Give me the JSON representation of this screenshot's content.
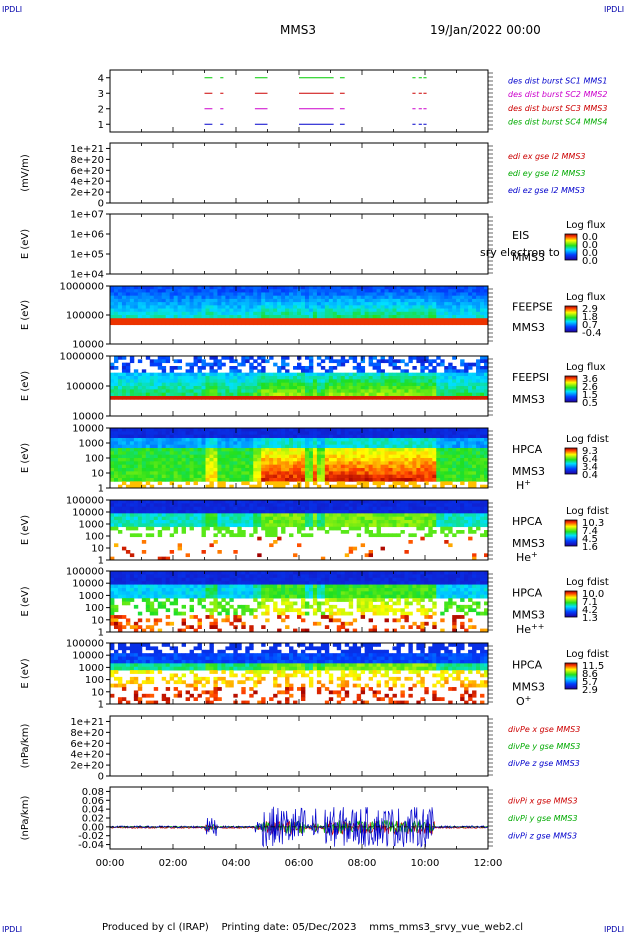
{
  "header": {
    "corner_tl": "IPDLI",
    "corner_tr": "IPDLI",
    "title": "MMS3",
    "datetime": "19/Jan/2022 00:00"
  },
  "footer": {
    "corner_bl": "IPDLI",
    "corner_br": "IPDLI",
    "text": "Produced by cl (IRAP)    Printing date: 05/Dec/2023    mms_mms3_srvy_vue_web2.cl"
  },
  "chart_data": [
    {
      "id": "burst",
      "type": "line",
      "ylim": [
        0.5,
        4.5
      ],
      "y_ticks": [
        "1",
        "2",
        "3",
        "4"
      ],
      "legend": [
        {
          "text": "des dist burst SC1 MMS1",
          "color": "#0000cc"
        },
        {
          "text": "des dist burst SC2 MMS2",
          "color": "#cc00cc"
        },
        {
          "text": "des dist burst SC3 MMS3",
          "color": "#cc0000"
        },
        {
          "text": "des dist burst SC4 MMS4",
          "color": "#00aa00"
        }
      ],
      "series": [
        {
          "level": 4,
          "color": "#00cc00",
          "segments": [
            [
              3.0,
              3.25
            ],
            [
              3.5,
              3.6
            ],
            [
              4.6,
              5.0
            ],
            [
              6.0,
              7.1
            ],
            [
              7.3,
              7.45
            ],
            [
              9.6,
              9.7
            ],
            [
              9.8,
              9.9
            ],
            [
              9.95,
              10.05
            ]
          ]
        },
        {
          "level": 3,
          "color": "#cc0000",
          "segments": [
            [
              3.0,
              3.25
            ],
            [
              3.5,
              3.6
            ],
            [
              4.6,
              5.0
            ],
            [
              6.0,
              7.1
            ],
            [
              7.3,
              7.45
            ],
            [
              9.6,
              9.7
            ],
            [
              9.8,
              9.9
            ],
            [
              9.95,
              10.05
            ]
          ]
        },
        {
          "level": 2,
          "color": "#cc00cc",
          "segments": [
            [
              3.0,
              3.25
            ],
            [
              3.5,
              3.6
            ],
            [
              4.6,
              5.0
            ],
            [
              6.0,
              7.1
            ],
            [
              7.3,
              7.45
            ],
            [
              9.6,
              9.7
            ],
            [
              9.8,
              9.9
            ],
            [
              9.95,
              10.05
            ]
          ]
        },
        {
          "level": 1,
          "color": "#0000cc",
          "segments": [
            [
              3.0,
              3.25
            ],
            [
              3.5,
              3.6
            ],
            [
              4.6,
              5.0
            ],
            [
              6.0,
              7.1
            ],
            [
              7.3,
              7.45
            ],
            [
              9.6,
              9.7
            ],
            [
              9.8,
              9.9
            ],
            [
              9.95,
              10.05
            ]
          ]
        }
      ]
    },
    {
      "id": "edi",
      "type": "line",
      "ylabel": "(mV/m)",
      "ylim": [
        0,
        1.1e+21
      ],
      "y_ticks": [
        "1e+21",
        "8e+20",
        "6e+20",
        "4e+20",
        "2e+20",
        "0"
      ],
      "y_tick_values": [
        1e+21,
        8e+20,
        6e+20,
        4e+20,
        2e+20,
        0
      ],
      "legend": [
        {
          "text": "edi ex gse l2 MMS3",
          "color": "#cc0000"
        },
        {
          "text": "edi ey gse l2 MMS3",
          "color": "#00aa00"
        },
        {
          "text": "edi ez gse l2 MMS3",
          "color": "#0000cc"
        }
      ]
    },
    {
      "id": "eis",
      "type": "heatmap",
      "ylabel": "E (eV)",
      "y_ticks": [
        "1e+07",
        "1e+06",
        "1e+05",
        "1e+04"
      ],
      "labels": [
        "EIS",
        "MMS3"
      ],
      "overlay_text": "sry electron to",
      "colorbar_title": "Log flux",
      "colorbar_ticks": [
        "0.0",
        "0.0",
        "0.0",
        "0.0"
      ]
    },
    {
      "id": "feepse",
      "type": "heatmap",
      "ylabel": "E (eV)",
      "y_ticks": [
        "1000000",
        "100000",
        "10000"
      ],
      "labels": [
        "FEEPSE",
        "MMS3"
      ],
      "colorbar_title": "Log flux",
      "colorbar_ticks": [
        "2.9",
        "1.8",
        "0.7",
        "-0.4"
      ]
    },
    {
      "id": "feepsi",
      "type": "heatmap",
      "ylabel": "E (eV)",
      "y_ticks": [
        "1000000",
        "100000",
        "10000"
      ],
      "labels": [
        "FEEPSI",
        "MMS3"
      ],
      "colorbar_title": "Log flux",
      "colorbar_ticks": [
        "3.6",
        "2.6",
        "1.5",
        "0.5"
      ]
    },
    {
      "id": "hpca_h",
      "type": "heatmap",
      "ylabel": "E (eV)",
      "y_ticks": [
        "10000",
        "1000",
        "100",
        "10",
        "1"
      ],
      "labels": [
        "HPCA",
        "MMS3",
        "H+"
      ],
      "colorbar_title": "Log fdist",
      "colorbar_ticks": [
        "9.3",
        "6.4",
        "3.4",
        "0.4"
      ]
    },
    {
      "id": "hpca_he",
      "type": "heatmap",
      "ylabel": "E (eV)",
      "y_ticks": [
        "100000",
        "10000",
        "1000",
        "100",
        "10",
        "1"
      ],
      "labels": [
        "HPCA",
        "MMS3",
        "He+"
      ],
      "colorbar_title": "Log fdist",
      "colorbar_ticks": [
        "10.3",
        "7.4",
        "4.5",
        "1.6"
      ]
    },
    {
      "id": "hpca_hepp",
      "type": "heatmap",
      "ylabel": "E (eV)",
      "y_ticks": [
        "100000",
        "10000",
        "1000",
        "100",
        "10",
        "1"
      ],
      "labels": [
        "HPCA",
        "MMS3",
        "He++"
      ],
      "colorbar_title": "Log fdist",
      "colorbar_ticks": [
        "10.0",
        "7.1",
        "4.2",
        "1.3"
      ]
    },
    {
      "id": "hpca_o",
      "type": "heatmap",
      "ylabel": "E (eV)",
      "y_ticks": [
        "100000",
        "10000",
        "1000",
        "100",
        "10",
        "1"
      ],
      "labels": [
        "HPCA",
        "MMS3",
        "O+"
      ],
      "colorbar_title": "Log fdist",
      "colorbar_ticks": [
        "11.5",
        "8.6",
        "5.7",
        "2.9"
      ]
    },
    {
      "id": "divpe",
      "type": "line",
      "ylabel": "(nPa/km)",
      "ylim": [
        0,
        1.1e+21
      ],
      "y_ticks": [
        "1e+21",
        "8e+20",
        "6e+20",
        "4e+20",
        "2e+20",
        "0"
      ],
      "y_tick_values": [
        1e+21,
        8e+20,
        6e+20,
        4e+20,
        2e+20,
        0
      ],
      "legend": [
        {
          "text": "divPe x gse MMS3",
          "color": "#cc0000"
        },
        {
          "text": "divPe y gse MMS3",
          "color": "#00aa00"
        },
        {
          "text": "divPe z gse MMS3",
          "color": "#0000cc"
        }
      ]
    },
    {
      "id": "divpi",
      "type": "line",
      "ylabel": "(nPa/km)",
      "ylim": [
        -0.05,
        0.09
      ],
      "y_ticks": [
        "0.08",
        "0.06",
        "0.04",
        "0.02",
        "0.00",
        "-0.02",
        "-0.04"
      ],
      "y_tick_values": [
        0.08,
        0.06,
        0.04,
        0.02,
        0.0,
        -0.02,
        -0.04
      ],
      "legend": [
        {
          "text": "divPi x gse MMS3",
          "color": "#cc0000"
        },
        {
          "text": "divPi y gse MMS3",
          "color": "#00aa00"
        },
        {
          "text": "divPi z gse MMS3",
          "color": "#0000cc"
        }
      ]
    }
  ],
  "x_axis": {
    "range_hours": [
      0,
      12
    ],
    "ticks": [
      "00:00",
      "02:00",
      "04:00",
      "06:00",
      "08:00",
      "10:00",
      "12:00"
    ]
  }
}
